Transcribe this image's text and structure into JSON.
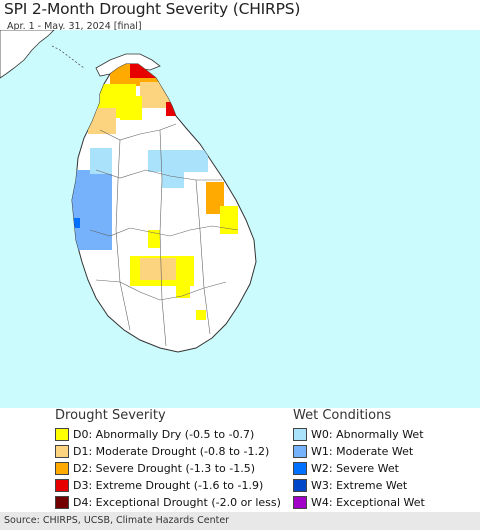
{
  "header": {
    "title": "SPI 2-Month Drought Severity (CHIRPS)",
    "subtitle": "Apr. 1 - May. 31, 2024 [final]"
  },
  "colors": {
    "ocean": "#ccfbfd",
    "land": "#ffffff",
    "D0": "#ffff00",
    "D1": "#fcd37f",
    "D2": "#ffaa00",
    "D3": "#e60000",
    "D4": "#730000",
    "W0": "#aae1fb",
    "W1": "#76b2fc",
    "W2": "#0070ff",
    "W3": "#0046c8",
    "W4": "#a000c8"
  },
  "legend": {
    "drought_heading": "Drought Severity",
    "drought_items": [
      {
        "code": "D0",
        "label": "D0: Abnormally Dry (-0.5 to -0.7)"
      },
      {
        "code": "D1",
        "label": "D1: Moderate Drought (-0.8 to -1.2)"
      },
      {
        "code": "D2",
        "label": "D2: Severe Drought (-1.3 to -1.5)"
      },
      {
        "code": "D3",
        "label": "D3: Extreme Drought (-1.6 to -1.9)"
      },
      {
        "code": "D4",
        "label": "D4: Exceptional Drought (-2.0 or less)"
      }
    ],
    "wet_heading": "Wet Conditions",
    "wet_items": [
      {
        "code": "W0",
        "label": "W0: Abnormally Wet"
      },
      {
        "code": "W1",
        "label": "W1: Moderate Wet"
      },
      {
        "code": "W2",
        "label": "W2: Severe Wet"
      },
      {
        "code": "W3",
        "label": "W3: Extreme Wet"
      },
      {
        "code": "W4",
        "label": "W4: Exceptional Wet"
      }
    ]
  },
  "footer": {
    "source": "Source: CHIRPS, UCSB, Climate Hazards Center"
  }
}
